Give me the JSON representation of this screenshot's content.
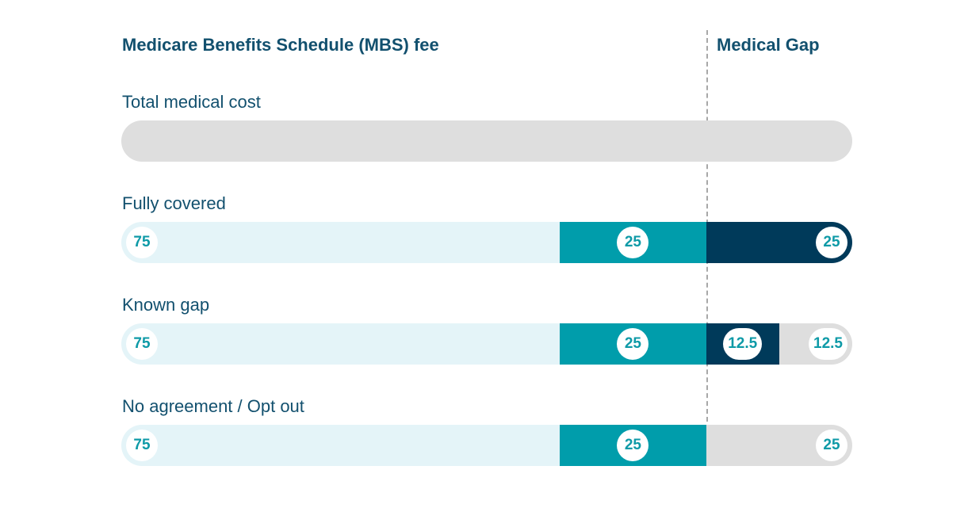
{
  "headings": {
    "mbs_fee": "Medicare Benefits Schedule (MBS) fee",
    "medical_gap": "Medical Gap"
  },
  "colors": {
    "mbs_light": "#e4f4f8",
    "mbs_teal": "#009dab",
    "gap_navy": "#003a5a",
    "gap_grey": "#dedede",
    "badge_text": "#0e9aa7",
    "label_text": "#12506e"
  },
  "chart_data": {
    "type": "bar",
    "orientation": "horizontal",
    "stacked": true,
    "xlim": [
      0,
      125
    ],
    "divider_at": 100,
    "rows": [
      {
        "label": "Total medical cost",
        "segments": []
      },
      {
        "label": "Fully covered",
        "segments": [
          {
            "value": 75,
            "label": "75",
            "kind": "mbs_light"
          },
          {
            "value": 25,
            "label": "25",
            "kind": "mbs_teal"
          },
          {
            "value": 25,
            "label": "25",
            "kind": "gap_navy"
          }
        ]
      },
      {
        "label": "Known gap",
        "segments": [
          {
            "value": 75,
            "label": "75",
            "kind": "mbs_light"
          },
          {
            "value": 25,
            "label": "25",
            "kind": "mbs_teal"
          },
          {
            "value": 12.5,
            "label": "12.5",
            "kind": "gap_navy"
          },
          {
            "value": 12.5,
            "label": "12.5",
            "kind": "gap_grey"
          }
        ]
      },
      {
        "label": "No agreement / Opt out",
        "segments": [
          {
            "value": 75,
            "label": "75",
            "kind": "mbs_light"
          },
          {
            "value": 25,
            "label": "25",
            "kind": "mbs_teal"
          },
          {
            "value": 25,
            "label": "25",
            "kind": "gap_grey"
          }
        ]
      }
    ]
  }
}
